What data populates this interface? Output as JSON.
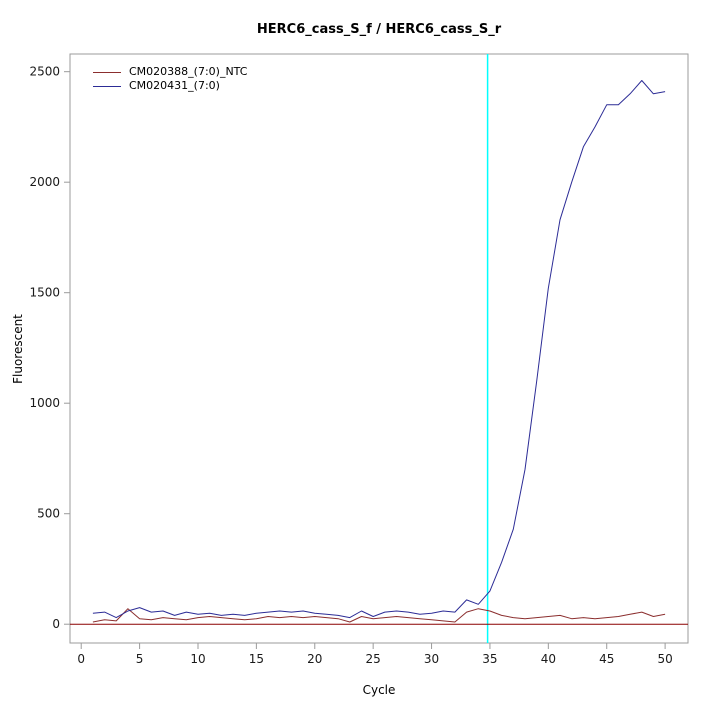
{
  "chart_data": {
    "type": "line",
    "title": "HERC6_cass_S_f / HERC6_cass_S_r",
    "xlabel": "Cycle",
    "ylabel": "Fluorescent",
    "xlim": [
      -0.96,
      51.96
    ],
    "ylim": [
      -85,
      2580
    ],
    "xticks": [
      0,
      5,
      10,
      15,
      20,
      25,
      30,
      35,
      40,
      45,
      50
    ],
    "yticks": [
      0,
      500,
      1000,
      1500,
      2000,
      2500
    ],
    "grid": false,
    "legend_position": "top-left",
    "colors": {
      "axis": "#9b9b9b",
      "tick_text": "#1a1a1a",
      "background": "#ffffff",
      "threshold": "#00ffff",
      "baseline": "#8b0000"
    },
    "threshold_line": {
      "orientation": "vertical",
      "x": 34.8
    },
    "baseline": {
      "orientation": "horizontal",
      "y": 0
    },
    "x": [
      1,
      2,
      3,
      4,
      5,
      6,
      7,
      8,
      9,
      10,
      11,
      12,
      13,
      14,
      15,
      16,
      17,
      18,
      19,
      20,
      21,
      22,
      23,
      24,
      25,
      26,
      27,
      28,
      29,
      30,
      31,
      32,
      33,
      34,
      35,
      36,
      37,
      38,
      39,
      40,
      41,
      42,
      43,
      44,
      45,
      46,
      47,
      48,
      49,
      50
    ],
    "series": [
      {
        "name": "CM020388_(7:0)_NTC",
        "color": "#8b2e2e",
        "values": [
          10,
          20,
          15,
          70,
          25,
          20,
          30,
          25,
          20,
          30,
          35,
          30,
          25,
          20,
          25,
          35,
          30,
          35,
          30,
          35,
          30,
          25,
          10,
          35,
          25,
          30,
          35,
          30,
          25,
          20,
          15,
          10,
          55,
          70,
          60,
          40,
          30,
          25,
          30,
          35,
          40,
          25,
          30,
          25,
          30,
          35,
          45,
          55,
          35,
          45
        ]
      },
      {
        "name": "CM020431_(7:0)",
        "color": "#2c2c96",
        "values": [
          50,
          55,
          30,
          60,
          75,
          55,
          60,
          40,
          55,
          45,
          50,
          40,
          45,
          40,
          50,
          55,
          60,
          55,
          60,
          50,
          45,
          40,
          30,
          60,
          35,
          55,
          60,
          55,
          45,
          50,
          60,
          55,
          110,
          90,
          150,
          280,
          430,
          700,
          1100,
          1520,
          1830,
          2000,
          2160,
          2250,
          2350,
          2350,
          2400,
          2460,
          2400,
          2410
        ]
      }
    ]
  }
}
